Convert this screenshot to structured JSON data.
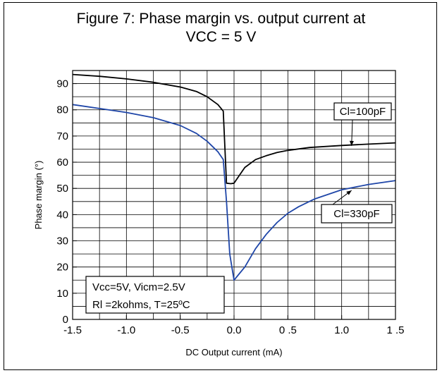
{
  "figure": {
    "title_line1": "Figure 7: Phase margin vs. output current at",
    "title_line2": "VCC = 5 V"
  },
  "chart_data": {
    "type": "line",
    "xlabel": "DC Output current (mA)",
    "ylabel": "Phase margin (°)",
    "xlim": [
      -1.5,
      1.5
    ],
    "ylim": [
      0,
      95
    ],
    "x_ticks": [
      -1.5,
      -1.0,
      -0.5,
      0.0,
      0.5,
      1.0,
      1.5
    ],
    "x_tick_labels": [
      "-1.5",
      "-1.0",
      "-0.5",
      "0.0",
      "0 .5",
      "1.0",
      "1 .5"
    ],
    "y_ticks": [
      0,
      10,
      20,
      30,
      40,
      50,
      60,
      70,
      80,
      90
    ],
    "y_tick_labels": [
      "0",
      "10",
      "20",
      "30",
      "40",
      "50",
      "60",
      "70",
      "80",
      "90"
    ],
    "grid": true,
    "series": [
      {
        "name": "Cl=100pF",
        "color": "#000000",
        "x": [
          -1.5,
          -1.25,
          -1.0,
          -0.75,
          -0.5,
          -0.35,
          -0.25,
          -0.15,
          -0.1,
          -0.07,
          -0.03,
          0.0,
          0.05,
          0.1,
          0.2,
          0.3,
          0.4,
          0.5,
          0.7,
          1.0,
          1.25,
          1.5
        ],
        "y": [
          93.5,
          92.8,
          91.8,
          90.5,
          88.7,
          87.0,
          85.0,
          82.0,
          79.5,
          52.0,
          51.8,
          52.0,
          55.0,
          58.0,
          61.0,
          62.5,
          63.7,
          64.5,
          65.6,
          66.4,
          66.9,
          67.4
        ]
      },
      {
        "name": "Cl=330pF",
        "color": "#1f46a8",
        "x": [
          -1.5,
          -1.25,
          -1.0,
          -0.75,
          -0.5,
          -0.35,
          -0.25,
          -0.15,
          -0.1,
          -0.07,
          -0.04,
          -0.02,
          0.0,
          0.05,
          0.1,
          0.2,
          0.3,
          0.4,
          0.5,
          0.6,
          0.75,
          1.0,
          1.25,
          1.5
        ],
        "y": [
          82.0,
          80.5,
          79.0,
          77.0,
          74.0,
          71.0,
          68.0,
          64.0,
          61.0,
          45.0,
          25.0,
          20.0,
          15.0,
          17.5,
          20.0,
          27.0,
          32.5,
          37.0,
          40.5,
          43.0,
          46.0,
          49.5,
          51.5,
          53.0
        ]
      }
    ],
    "annotations": [
      {
        "text": "Cl=100pF",
        "points_to": [
          1.0,
          66.5
        ]
      },
      {
        "text": "Cl=330pF",
        "points_to": [
          1.0,
          49.5
        ]
      }
    ],
    "conditions": [
      "Vcc=5V, Vicm=2.5V",
      "Rl =2kohms, T=25ºC"
    ]
  }
}
